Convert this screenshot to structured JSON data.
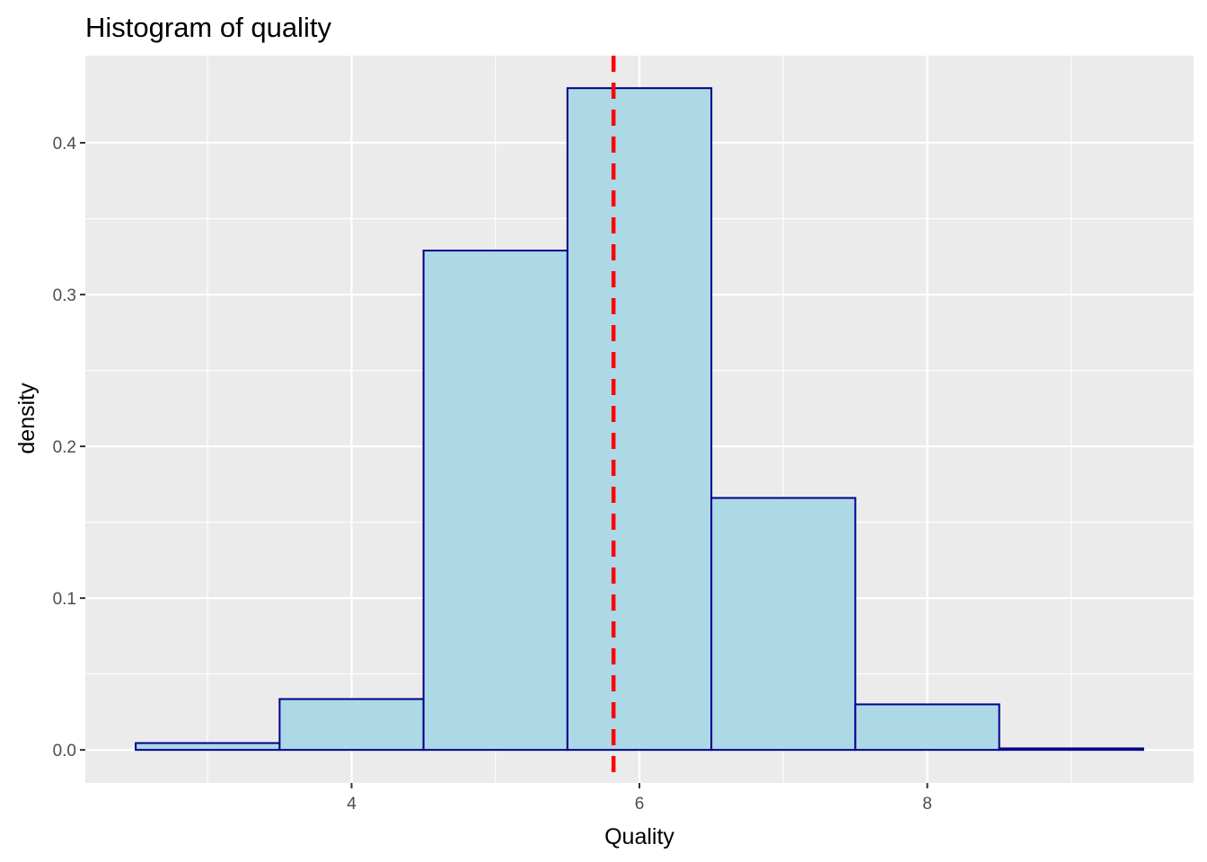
{
  "colors": {
    "panel_background": "#EBEBEB",
    "grid_major": "#FFFFFF",
    "bar_fill": "#ADD8E6",
    "bar_outline": "#00008B",
    "mean_line": "#FF0000",
    "tick_text": "#4D4D4D"
  },
  "chart_data": {
    "type": "bar",
    "title": "Histogram of quality",
    "xlabel": "Quality",
    "ylabel": "density",
    "xlim": [
      2.15,
      9.85
    ],
    "ylim": [
      -0.0218,
      0.4574
    ],
    "x_ticks": [
      4,
      6,
      8
    ],
    "x_tick_labels": [
      "4",
      "6",
      "8"
    ],
    "x_minor_breaks": [
      3,
      5,
      7,
      9
    ],
    "y_ticks": [
      0.0,
      0.1,
      0.2,
      0.3,
      0.4
    ],
    "y_tick_labels": [
      "0.0",
      "0.1",
      "0.2",
      "0.3",
      "0.4"
    ],
    "y_minor_breaks": [
      0.05,
      0.15,
      0.25,
      0.35
    ],
    "grid": true,
    "legend": "none",
    "bins": [
      {
        "x_start": 2.5,
        "x_end": 3.5,
        "density": 0.0045
      },
      {
        "x_start": 3.5,
        "x_end": 4.5,
        "density": 0.0335
      },
      {
        "x_start": 4.5,
        "x_end": 5.5,
        "density": 0.329
      },
      {
        "x_start": 5.5,
        "x_end": 6.5,
        "density": 0.436
      },
      {
        "x_start": 6.5,
        "x_end": 7.5,
        "density": 0.166
      },
      {
        "x_start": 7.5,
        "x_end": 8.5,
        "density": 0.03
      },
      {
        "x_start": 8.5,
        "x_end": 9.5,
        "density": 0.001
      }
    ],
    "mean_line": {
      "x": 5.82,
      "style": "dashed"
    }
  }
}
